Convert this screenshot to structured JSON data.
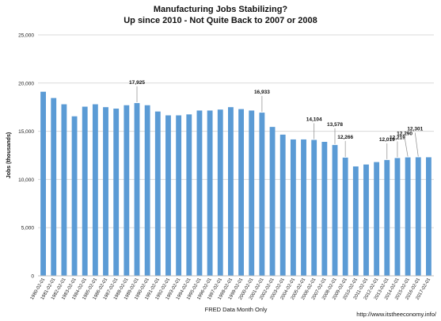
{
  "chart_data": {
    "type": "bar",
    "title": "Manufacturing Jobs Stabilizing?",
    "subtitle": "Up since 2010 - Not Quite Back to 2007 or 2008",
    "xlabel": "FRED Data Month Only",
    "ylabel": "Jobs (thousands)",
    "ylim": [
      0,
      25000
    ],
    "yticks": [
      "0",
      "5,000",
      "10,000",
      "15,000",
      "20,000",
      "25,000"
    ],
    "grid": true,
    "bar_color": "#5b9bd5",
    "source_note": "http://www.itstheeconomy.info/",
    "categories": [
      "1980-02-01",
      "1981-02-01",
      "1982-02-01",
      "1983-02-01",
      "1984-02-01",
      "1985-02-01",
      "1986-02-01",
      "1987-02-01",
      "1988-02-01",
      "1989-02-01",
      "1990-02-01",
      "1991-02-01",
      "1992-02-01",
      "1993-02-01",
      "1994-02-01",
      "1995-02-01",
      "1996-02-01",
      "1997-02-01",
      "1998-02-01",
      "1999-02-01",
      "2000-02-01",
      "2001-02-01",
      "2002-02-01",
      "2003-02-01",
      "2004-02-01",
      "2005-02-01",
      "2006-02-01",
      "2007-02-01",
      "2008-02-01",
      "2009-02-01",
      "2010-02-01",
      "2011-02-01",
      "2012-02-01",
      "2013-02-01",
      "2014-02-01",
      "2015-02-01",
      "2016-02-01",
      "2017-02-01"
    ],
    "values": [
      19100,
      18450,
      17800,
      16550,
      17550,
      17800,
      17500,
      17350,
      17700,
      17925,
      17700,
      17050,
      16650,
      16650,
      16750,
      17150,
      17150,
      17250,
      17500,
      17300,
      17150,
      16933,
      15450,
      14650,
      14150,
      14150,
      14104,
      13900,
      13578,
      12266,
      11350,
      11550,
      11800,
      12019,
      12219,
      12290,
      12301,
      12301
    ],
    "data_labels": [
      {
        "index": 9,
        "text": "17,925"
      },
      {
        "index": 21,
        "text": "16,933"
      },
      {
        "index": 26,
        "text": "14,104"
      },
      {
        "index": 28,
        "text": "13,578"
      },
      {
        "index": 29,
        "text": "12,266"
      },
      {
        "index": 33,
        "text": "12,019"
      },
      {
        "index": 34,
        "text": "12,219"
      },
      {
        "index": 35,
        "text": "12,290"
      },
      {
        "index": 36,
        "text": "12,301"
      }
    ]
  }
}
